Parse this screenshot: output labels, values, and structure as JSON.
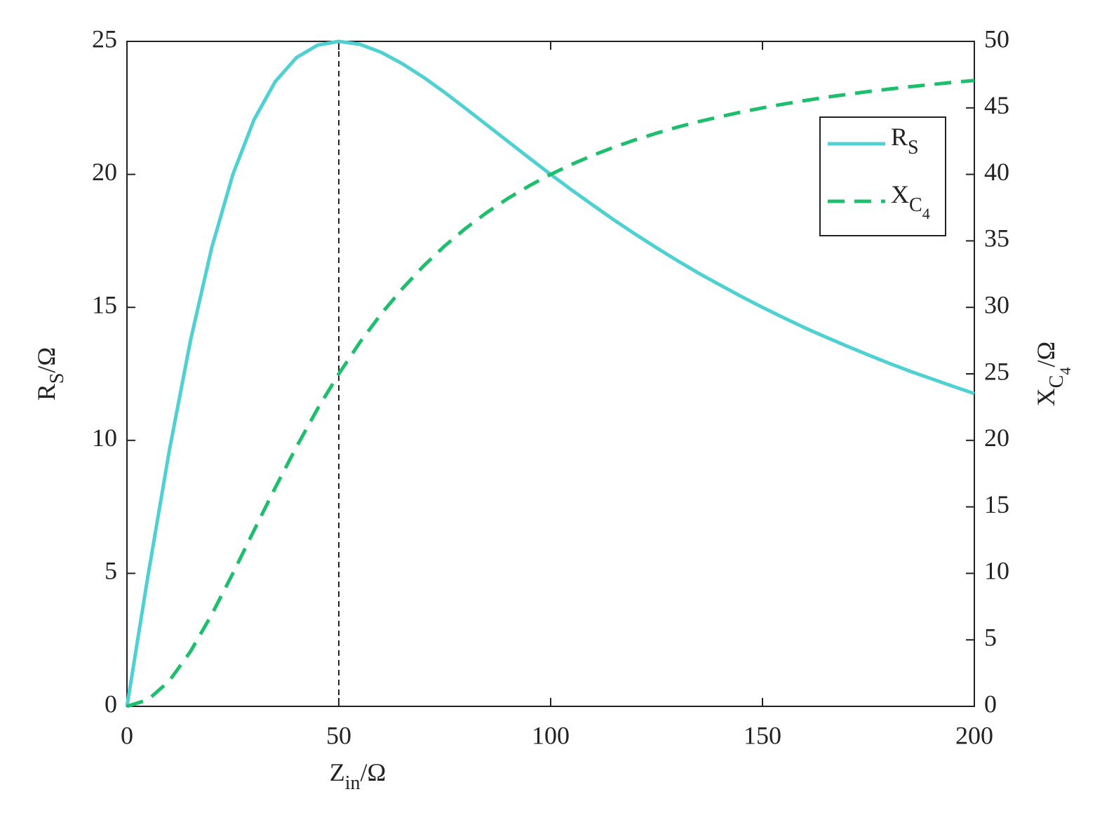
{
  "chart_data": {
    "type": "line",
    "xlabel": {
      "base": "Z",
      "sub": "in",
      "unit": "/Ω"
    },
    "ylabel": {
      "base": "R",
      "sub": "S",
      "unit": "/Ω"
    },
    "y2label": {
      "base": "X",
      "sub": "C",
      "subsub": "4",
      "unit": "/Ω"
    },
    "x": [
      0,
      5,
      10,
      15,
      20,
      25,
      30,
      35,
      40,
      45,
      50,
      55,
      60,
      65,
      70,
      75,
      80,
      85,
      90,
      95,
      100,
      105,
      110,
      115,
      120,
      125,
      130,
      135,
      140,
      145,
      150,
      155,
      160,
      165,
      170,
      175,
      180,
      185,
      190,
      195,
      200
    ],
    "series": [
      {
        "name": "R",
        "name_sub": "S",
        "color": "#4fd0d2",
        "dash": false,
        "values": [
          0,
          4.95,
          9.62,
          13.76,
          17.24,
          20,
          22.06,
          23.49,
          24.39,
          24.86,
          25,
          24.89,
          24.59,
          24.16,
          23.65,
          23.08,
          22.47,
          21.85,
          21.23,
          20.61,
          20,
          19.41,
          18.84,
          18.28,
          17.75,
          17.24,
          16.75,
          16.28,
          15.84,
          15.41,
          15,
          14.61,
          14.23,
          13.88,
          13.54,
          13.21,
          12.89,
          12.59,
          12.31,
          12.03,
          11.76
        ]
      },
      {
        "name": "X",
        "name_sub": "C",
        "name_subsub": "4",
        "color": "#1dbf6c",
        "dash": true,
        "axis": "y2",
        "values": [
          0,
          0.5,
          1.92,
          4.13,
          6.9,
          10,
          13.24,
          16.44,
          19.51,
          22.38,
          25,
          27.38,
          29.51,
          31.41,
          33.11,
          34.62,
          35.96,
          37.15,
          38.21,
          39.15,
          40,
          40.76,
          41.44,
          42.05,
          42.6,
          43.1,
          43.56,
          43.97,
          44.34,
          44.69,
          45,
          45.29,
          45.55,
          45.8,
          46.02,
          46.23,
          46.42,
          46.6,
          46.76,
          46.92,
          47.06
        ]
      }
    ],
    "vline_x": 50,
    "xlim": [
      0,
      200
    ],
    "xticks": [
      0,
      50,
      100,
      150,
      200
    ],
    "ylim": [
      0,
      25
    ],
    "yticks": [
      0,
      5,
      10,
      15,
      20,
      25
    ],
    "y2lim": [
      0,
      50
    ],
    "y2ticks": [
      0,
      5,
      10,
      15,
      20,
      25,
      30,
      35,
      40,
      45,
      50
    ],
    "legend": "upper right",
    "grid": false
  }
}
